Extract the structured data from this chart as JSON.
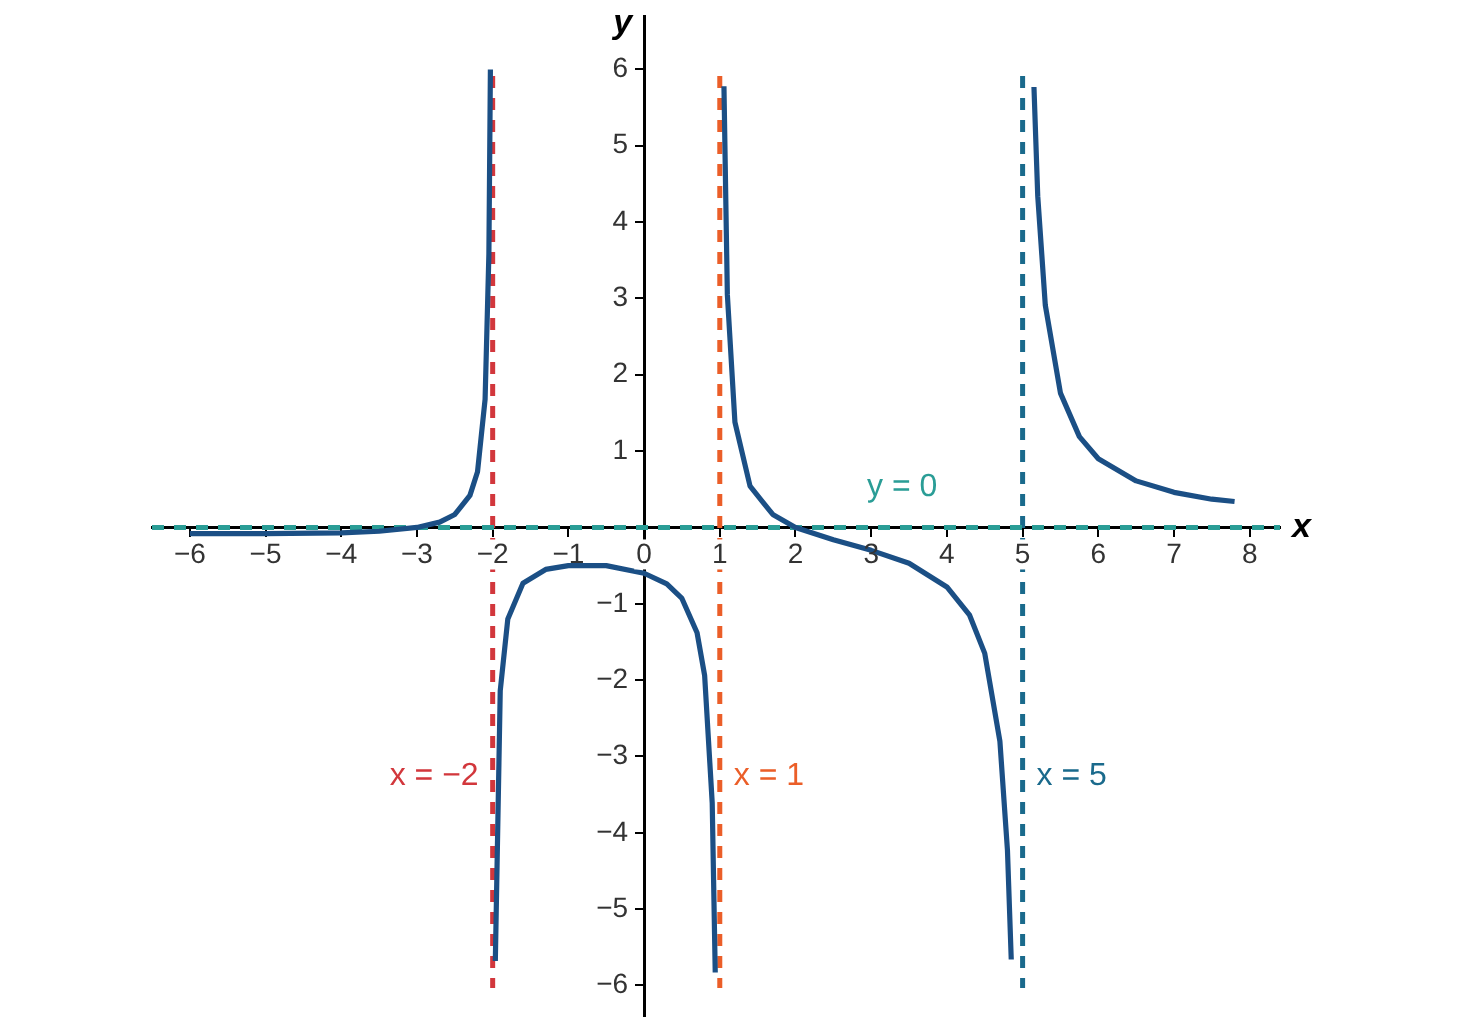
{
  "chart_data": {
    "type": "line",
    "xlabel": "x",
    "ylabel": "y",
    "xlim": [
      -6.5,
      8.4
    ],
    "ylim": [
      -6.4,
      6.7
    ],
    "xticks": [
      {
        "value": -6,
        "label": "−6"
      },
      {
        "value": -5,
        "label": "−5"
      },
      {
        "value": -4,
        "label": "−4"
      },
      {
        "value": -3,
        "label": "−3"
      },
      {
        "value": -2,
        "label": "−2"
      },
      {
        "value": -1,
        "label": "−1"
      },
      0,
      1,
      2,
      3,
      4,
      5,
      6,
      7,
      8
    ],
    "yticks": [
      {
        "value": -6,
        "label": "−6"
      },
      {
        "value": -5,
        "label": "−5"
      },
      {
        "value": -4,
        "label": "−4"
      },
      {
        "value": -3,
        "label": "−3"
      },
      {
        "value": -2,
        "label": "−2"
      },
      {
        "value": -1,
        "label": "−1"
      },
      {
        "value": 0,
        "label": null
      },
      1,
      2,
      3,
      4,
      5,
      6
    ],
    "grid": false,
    "legend": false,
    "marker": "none",
    "line_style": "solid",
    "series": [
      {
        "color": "#1b4f85",
        "x": [
          -6,
          -5,
          -4,
          -3.5,
          -3,
          -2.7,
          -2.5,
          -2.3,
          -2.2,
          -2.1,
          -2.05,
          -2.03
        ],
        "values": [
          -0.08,
          -0.08,
          -0.07,
          -0.05,
          0,
          0.07,
          0.17,
          0.42,
          0.73,
          1.68,
          3.58,
          6
        ]
      },
      {
        "color": "#1b4f85",
        "x": [
          -1.965,
          -1.9,
          -1.8,
          -1.6,
          -1.3,
          -1,
          -0.5,
          0,
          0.3,
          0.5,
          0.7,
          0.8,
          0.9,
          0.94
        ],
        "values": [
          -5.68,
          -2.14,
          -1.2,
          -0.73,
          -0.55,
          -0.5,
          -0.5,
          -0.6,
          -0.74,
          -0.93,
          -1.38,
          -1.94,
          -3.61,
          -5.83
        ]
      },
      {
        "color": "#1b4f85",
        "x": [
          1.055,
          1.1,
          1.2,
          1.4,
          1.7,
          2,
          2.5,
          3,
          3.5,
          4,
          4.3,
          4.5,
          4.7,
          4.8,
          4.85
        ],
        "values": [
          5.78,
          3.05,
          1.38,
          0.54,
          0.17,
          0,
          -0.16,
          -0.3,
          -0.47,
          -0.78,
          -1.15,
          -1.65,
          -2.8,
          -4.23,
          -5.66
        ]
      },
      {
        "color": "#1b4f85",
        "x": [
          5.15,
          5.2,
          5.3,
          5.5,
          5.75,
          6,
          6.5,
          7,
          7.5,
          7.8
        ],
        "values": [
          5.77,
          4.34,
          2.91,
          1.76,
          1.19,
          0.9,
          0.61,
          0.46,
          0.37,
          0.34
        ]
      }
    ],
    "ref_lines": [
      {
        "axis": "x",
        "value": -2,
        "label": "x = −2",
        "color": "#d2373c",
        "line_style": "dashed"
      },
      {
        "axis": "x",
        "value": 1,
        "label": "x = 1",
        "color": "#eb5e28",
        "line_style": "dashed"
      },
      {
        "axis": "x",
        "value": 5,
        "label": "x = 5",
        "color": "#1a6a8c",
        "line_style": "dashed"
      },
      {
        "axis": "y",
        "value": 0,
        "label": "y = 0",
        "color": "#2a9d96",
        "line_style": "dashed"
      }
    ]
  }
}
